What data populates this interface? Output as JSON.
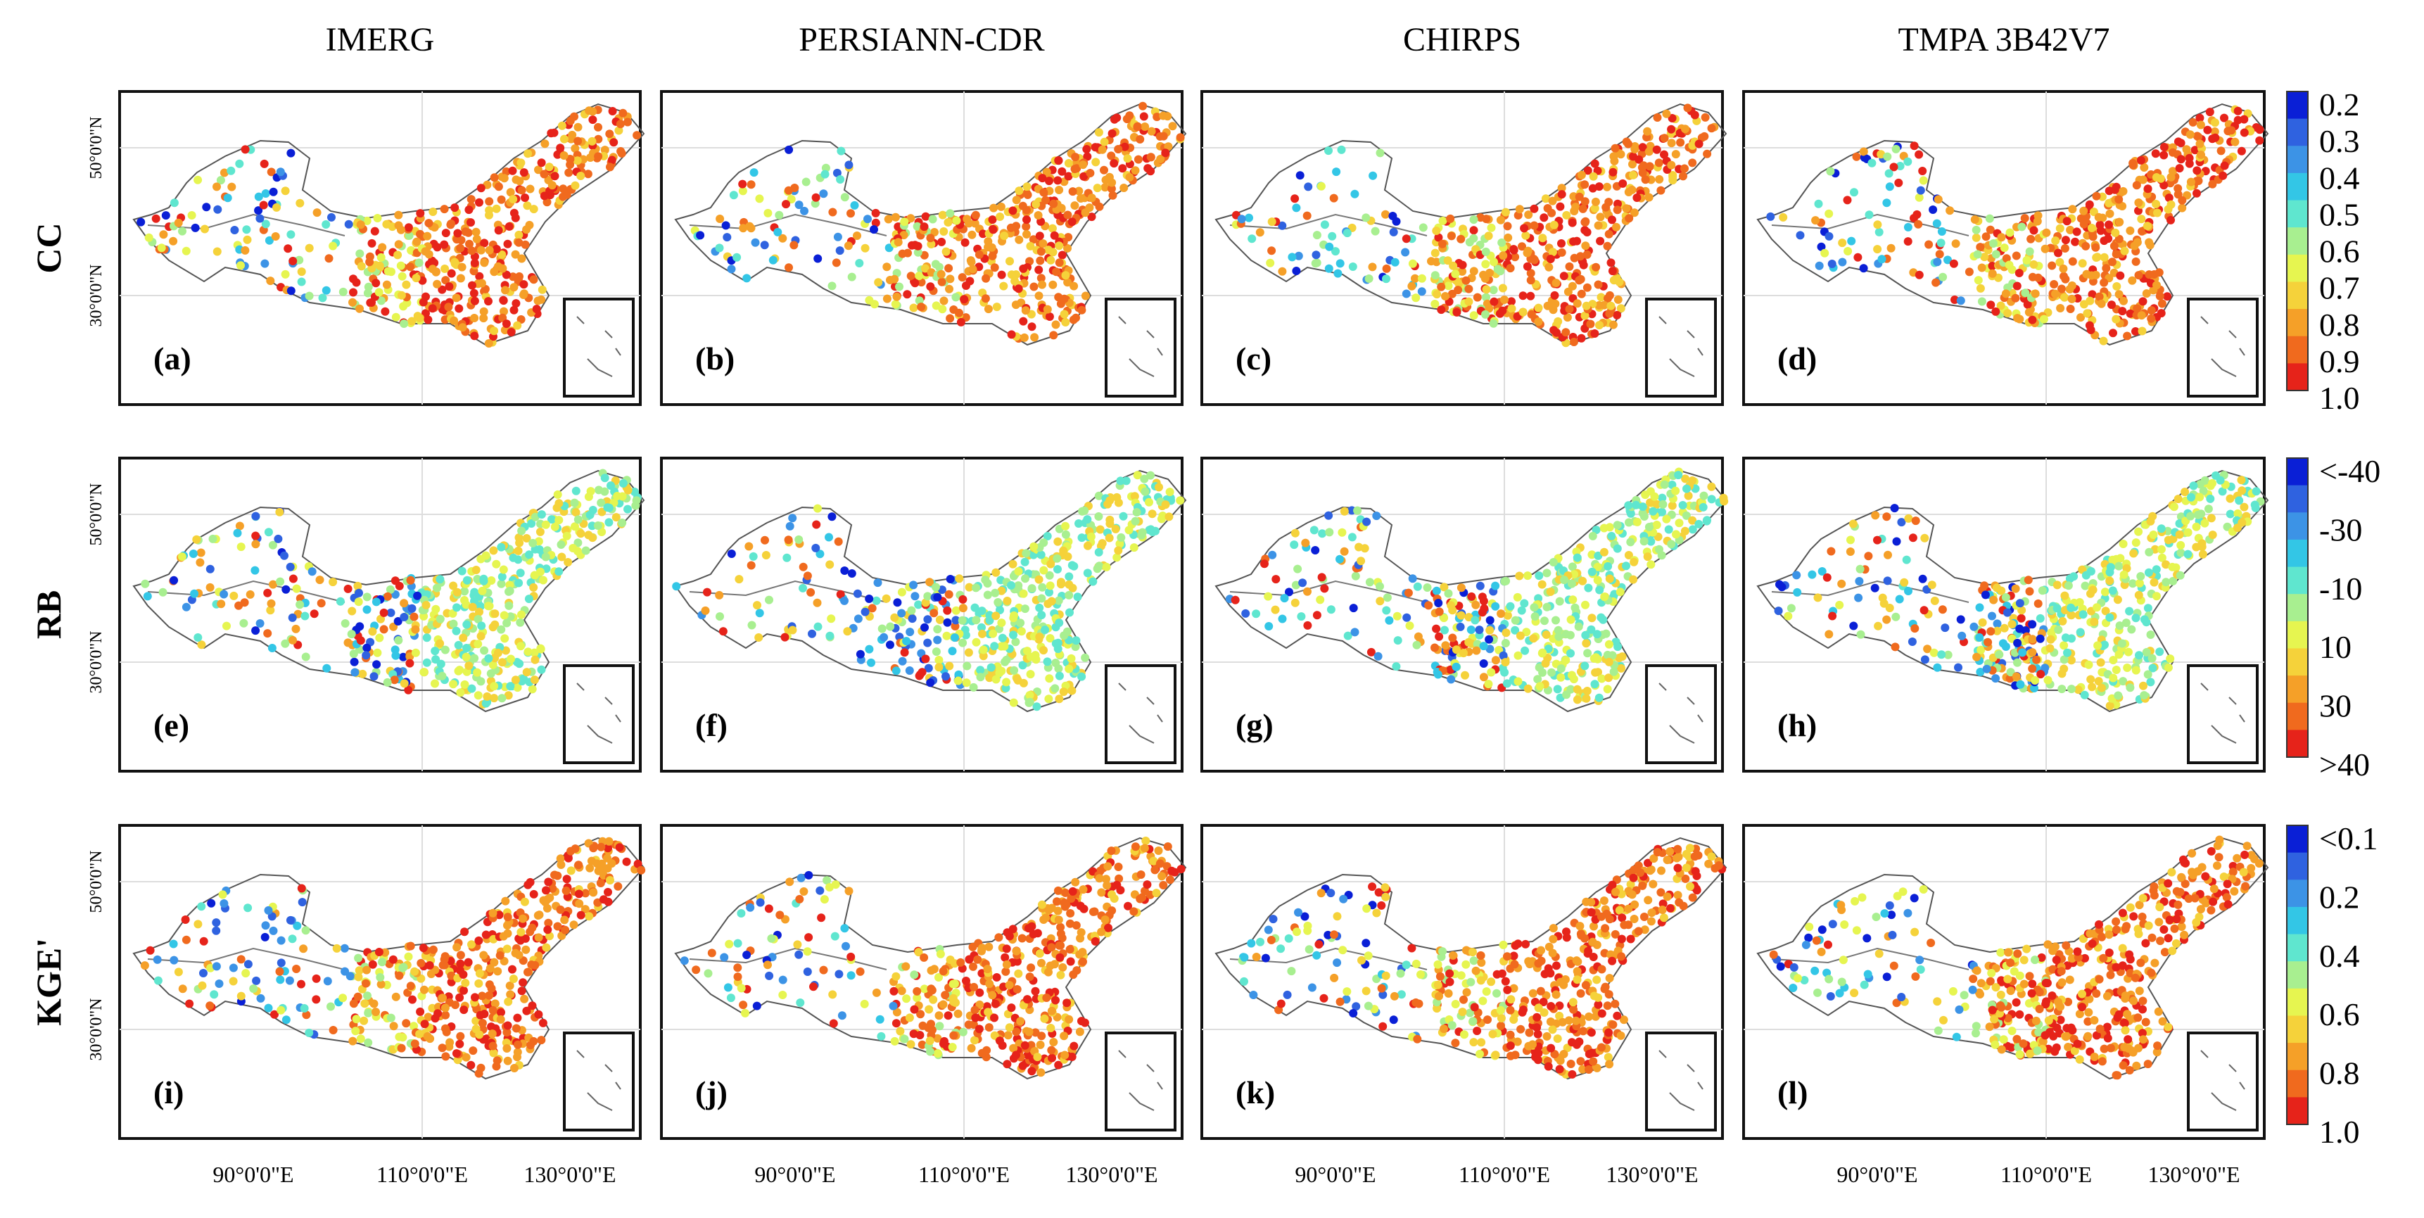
{
  "columns": [
    "IMERG",
    "PERSIANN-CDR",
    "CHIRPS",
    "TMPA 3B42V7"
  ],
  "rows": [
    {
      "metric": "CC",
      "panels": [
        "(a)",
        "(b)",
        "(c)",
        "(d)"
      ],
      "colorbar": {
        "colors": [
          "#0a1fd6",
          "#2f62e0",
          "#3c93e6",
          "#33c6e6",
          "#5fe6cf",
          "#a8ef90",
          "#e6f550",
          "#f5d23a",
          "#f5a028",
          "#f06a1e",
          "#e6231a"
        ],
        "labels": [
          "0.2",
          "0.3",
          "0.4",
          "0.5",
          "0.6",
          "0.7",
          "0.8",
          "0.9",
          "1.0"
        ]
      }
    },
    {
      "metric": "RB",
      "panels": [
        "(e)",
        "(f)",
        "(g)",
        "(h)"
      ],
      "colorbar": {
        "colors": [
          "#0a1fd6",
          "#2f62e0",
          "#3c93e6",
          "#33c6e6",
          "#5fe6cf",
          "#a8ef90",
          "#e6f550",
          "#f5d23a",
          "#f5a028",
          "#f06a1e",
          "#e6231a"
        ],
        "labels": [
          "<-40",
          "-30",
          "-10",
          "10",
          "30",
          ">40"
        ]
      }
    },
    {
      "metric": "KGE'",
      "panels": [
        "(i)",
        "(j)",
        "(k)",
        "(l)"
      ],
      "colorbar": {
        "colors": [
          "#0a1fd6",
          "#2f62e0",
          "#3c93e6",
          "#33c6e6",
          "#5fe6cf",
          "#a8ef90",
          "#e6f550",
          "#f5d23a",
          "#f5a028",
          "#f06a1e",
          "#e6231a"
        ],
        "labels": [
          "<0.1",
          "0.2",
          "0.4",
          "0.6",
          "0.8",
          "1.0"
        ]
      }
    }
  ],
  "lat_labels": [
    "50°0'0\"N",
    "30°0'0\"N"
  ],
  "lon_labels": [
    "90°0'0\"E",
    "110°0'0\"E",
    "130°0'0\"E"
  ]
}
